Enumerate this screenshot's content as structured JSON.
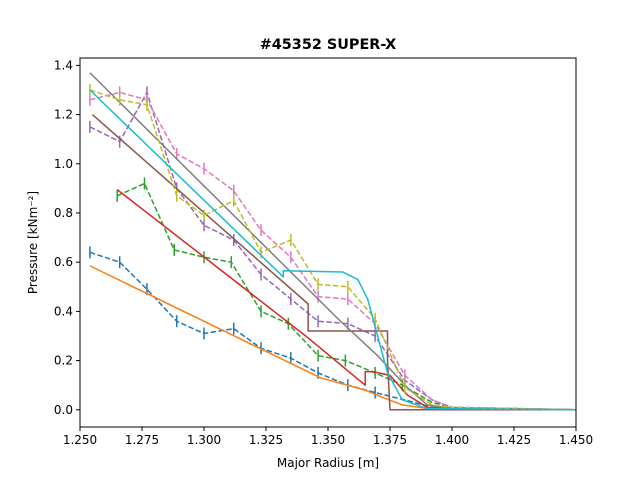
{
  "chart_data": {
    "type": "line",
    "title": "#45352 SUPER-X",
    "xlabel": "Major Radius [m]",
    "ylabel": "Pressure [kNm⁻²]",
    "xlim": [
      1.25,
      1.45
    ],
    "ylim": [
      -0.07,
      1.43
    ],
    "x_ticks": [
      1.25,
      1.275,
      1.3,
      1.325,
      1.35,
      1.375,
      1.4,
      1.425,
      1.45
    ],
    "x_tick_labels": [
      "1.250",
      "1.275",
      "1.300",
      "1.325",
      "1.350",
      "1.375",
      "1.400",
      "1.425",
      "1.450"
    ],
    "y_ticks": [
      0.0,
      0.2,
      0.4,
      0.6,
      0.8,
      1.0,
      1.2,
      1.4
    ],
    "y_tick_labels": [
      "0.0",
      "0.2",
      "0.4",
      "0.6",
      "0.8",
      "1.0",
      "1.2",
      "1.4"
    ],
    "grid": false,
    "series": [
      {
        "color": "#1f77b4",
        "style": "dashed",
        "errorbars": true,
        "x": [
          1.254,
          1.266,
          1.277,
          1.289,
          1.3,
          1.312,
          1.323,
          1.335,
          1.346,
          1.358,
          1.369,
          1.381,
          1.392,
          1.4,
          1.45
        ],
        "y": [
          0.64,
          0.6,
          0.49,
          0.36,
          0.31,
          0.33,
          0.25,
          0.21,
          0.15,
          0.1,
          0.07,
          0.04,
          0.01,
          0.0,
          0.0
        ]
      },
      {
        "color": "#ff7f0e",
        "style": "solid",
        "errorbars": false,
        "x": [
          1.254,
          1.347,
          1.365,
          1.372,
          1.38,
          1.39,
          1.45
        ],
        "y": [
          0.585,
          0.13,
          0.08,
          0.05,
          0.02,
          0.005,
          0.0
        ]
      },
      {
        "color": "#2ca02c",
        "style": "dashed",
        "errorbars": true,
        "x": [
          1.265,
          1.276,
          1.288,
          1.3,
          1.311,
          1.323,
          1.334,
          1.346,
          1.357,
          1.369,
          1.38,
          1.392,
          1.4,
          1.45
        ],
        "y": [
          0.87,
          0.92,
          0.65,
          0.62,
          0.6,
          0.4,
          0.35,
          0.22,
          0.2,
          0.15,
          0.1,
          0.03,
          0.01,
          0.0
        ]
      },
      {
        "color": "#d62728",
        "style": "solid",
        "errorbars": false,
        "x": [
          1.265,
          1.341,
          1.365,
          1.365,
          1.368,
          1.375,
          1.382,
          1.39,
          1.45
        ],
        "y": [
          0.895,
          0.3,
          0.1,
          0.155,
          0.155,
          0.14,
          0.06,
          0.01,
          0.0
        ]
      },
      {
        "color": "#9467bd",
        "style": "dashed",
        "errorbars": true,
        "x": [
          1.254,
          1.266,
          1.277,
          1.289,
          1.3,
          1.312,
          1.323,
          1.335,
          1.346,
          1.358,
          1.369,
          1.381,
          1.392,
          1.4,
          1.45
        ],
        "y": [
          1.15,
          1.09,
          1.29,
          0.9,
          0.75,
          0.69,
          0.55,
          0.45,
          0.36,
          0.35,
          0.3,
          0.12,
          0.04,
          0.01,
          0.0
        ]
      },
      {
        "color": "#8c564b",
        "style": "solid",
        "errorbars": false,
        "x": [
          1.255,
          1.342,
          1.342,
          1.374,
          1.374,
          1.375,
          1.45
        ],
        "y": [
          1.2,
          0.43,
          0.32,
          0.32,
          0.2,
          0.0,
          0.0
        ]
      },
      {
        "color": "#e377c2",
        "style": "dashed",
        "errorbars": true,
        "x": [
          1.254,
          1.266,
          1.277,
          1.289,
          1.3,
          1.312,
          1.323,
          1.335,
          1.346,
          1.358,
          1.369,
          1.381,
          1.392,
          1.4,
          1.45
        ],
        "y": [
          1.26,
          1.29,
          1.26,
          1.04,
          0.98,
          0.89,
          0.73,
          0.62,
          0.46,
          0.45,
          0.35,
          0.14,
          0.04,
          0.01,
          0.0
        ]
      },
      {
        "color": "#7f7f7f",
        "style": "solid",
        "errorbars": false,
        "x": [
          1.254,
          1.354,
          1.37,
          1.382,
          1.39,
          1.4,
          1.45
        ],
        "y": [
          1.37,
          0.37,
          0.22,
          0.09,
          0.02,
          0.005,
          0.0
        ]
      },
      {
        "color": "#bcbd22",
        "style": "dashed",
        "errorbars": true,
        "x": [
          1.254,
          1.266,
          1.277,
          1.289,
          1.3,
          1.312,
          1.323,
          1.335,
          1.346,
          1.358,
          1.369,
          1.381,
          1.392,
          1.4,
          1.45
        ],
        "y": [
          1.3,
          1.26,
          1.24,
          0.87,
          0.79,
          0.85,
          0.64,
          0.69,
          0.51,
          0.5,
          0.37,
          0.09,
          0.02,
          0.01,
          0.0
        ]
      },
      {
        "color": "#17becf",
        "style": "solid",
        "errorbars": false,
        "x": [
          1.254,
          1.332,
          1.332,
          1.356,
          1.362,
          1.366,
          1.37,
          1.374,
          1.38,
          1.39,
          1.45
        ],
        "y": [
          1.3,
          0.54,
          0.565,
          0.56,
          0.53,
          0.45,
          0.3,
          0.15,
          0.04,
          0.005,
          0.0
        ]
      }
    ]
  }
}
